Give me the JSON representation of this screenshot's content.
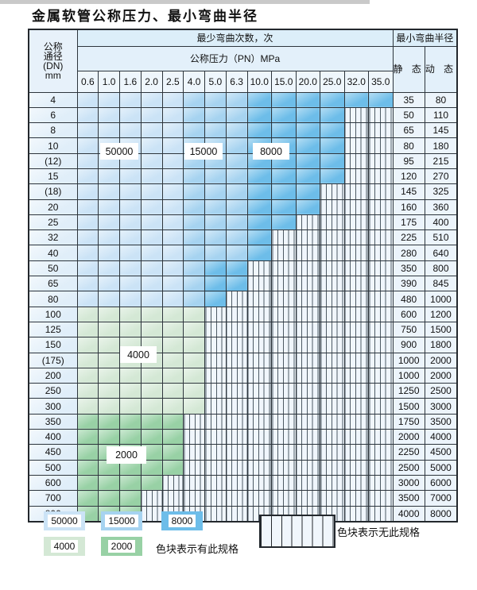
{
  "title": "金属软管公称压力、最小弯曲半径",
  "table": {
    "dn_header_lines": [
      "公称",
      "通径",
      "(DN)",
      "mm"
    ],
    "bend_cycles_header": "最少弯曲次数，次",
    "pressure_header": "公称压力（PN）MPa",
    "radius_header": "最小弯曲半径",
    "static_header": "静 态",
    "dynamic_header": "动 态",
    "pressure_columns": [
      "0.6",
      "1.0",
      "1.6",
      "2.0",
      "2.5",
      "4.0",
      "5.0",
      "6.3",
      "10.0",
      "15.0",
      "20.0",
      "25.0",
      "32.0",
      "35.0"
    ],
    "shade_meaning": {
      "L": "50000",
      "M": "15000",
      "D": "8000",
      "G4": "4000",
      "G2": "2000",
      "S": "无此规格"
    },
    "rows": [
      {
        "dn": "4",
        "static": "35",
        "dynamic": "80",
        "segments": [
          [
            "L",
            1,
            5
          ],
          [
            "M",
            6,
            8
          ],
          [
            "D",
            9,
            14
          ]
        ]
      },
      {
        "dn": "6",
        "static": "50",
        "dynamic": "110",
        "segments": [
          [
            "L",
            1,
            5
          ],
          [
            "M",
            6,
            8
          ],
          [
            "D",
            9,
            12
          ]
        ]
      },
      {
        "dn": "8",
        "static": "65",
        "dynamic": "145",
        "segments": [
          [
            "L",
            1,
            5
          ],
          [
            "M",
            6,
            8
          ],
          [
            "D",
            9,
            12
          ]
        ]
      },
      {
        "dn": "10",
        "static": "80",
        "dynamic": "180",
        "segments": [
          [
            "L",
            1,
            5
          ],
          [
            "M",
            6,
            8
          ],
          [
            "D",
            9,
            12
          ]
        ]
      },
      {
        "dn": "(12)",
        "static": "95",
        "dynamic": "215",
        "segments": [
          [
            "L",
            1,
            5
          ],
          [
            "M",
            6,
            8
          ],
          [
            "D",
            9,
            12
          ]
        ]
      },
      {
        "dn": "15",
        "static": "120",
        "dynamic": "270",
        "segments": [
          [
            "L",
            1,
            5
          ],
          [
            "M",
            6,
            8
          ],
          [
            "D",
            9,
            12
          ]
        ]
      },
      {
        "dn": "(18)",
        "static": "145",
        "dynamic": "325",
        "segments": [
          [
            "L",
            1,
            5
          ],
          [
            "M",
            6,
            8
          ],
          [
            "D",
            9,
            11
          ]
        ]
      },
      {
        "dn": "20",
        "static": "160",
        "dynamic": "360",
        "segments": [
          [
            "L",
            1,
            5
          ],
          [
            "M",
            6,
            8
          ],
          [
            "D",
            9,
            11
          ]
        ]
      },
      {
        "dn": "25",
        "static": "175",
        "dynamic": "400",
        "segments": [
          [
            "L",
            1,
            5
          ],
          [
            "M",
            6,
            8
          ],
          [
            "D",
            9,
            10
          ]
        ]
      },
      {
        "dn": "32",
        "static": "225",
        "dynamic": "510",
        "segments": [
          [
            "L",
            1,
            5
          ],
          [
            "M",
            6,
            8
          ],
          [
            "D",
            9,
            9
          ]
        ]
      },
      {
        "dn": "40",
        "static": "280",
        "dynamic": "640",
        "segments": [
          [
            "L",
            1,
            5
          ],
          [
            "M",
            6,
            8
          ],
          [
            "D",
            9,
            9
          ]
        ]
      },
      {
        "dn": "50",
        "static": "350",
        "dynamic": "800",
        "segments": [
          [
            "L",
            1,
            5
          ],
          [
            "M",
            6,
            6
          ],
          [
            "D",
            7,
            8
          ]
        ]
      },
      {
        "dn": "65",
        "static": "390",
        "dynamic": "845",
        "segments": [
          [
            "L",
            1,
            5
          ],
          [
            "M",
            6,
            6
          ],
          [
            "D",
            7,
            8
          ]
        ]
      },
      {
        "dn": "80",
        "static": "480",
        "dynamic": "1000",
        "segments": [
          [
            "L",
            1,
            5
          ],
          [
            "M",
            6,
            6
          ],
          [
            "D",
            7,
            7
          ]
        ]
      },
      {
        "dn": "100",
        "static": "600",
        "dynamic": "1200",
        "segments": [
          [
            "G4",
            1,
            6
          ]
        ]
      },
      {
        "dn": "125",
        "static": "750",
        "dynamic": "1500",
        "segments": [
          [
            "G4",
            1,
            6
          ]
        ]
      },
      {
        "dn": "150",
        "static": "900",
        "dynamic": "1800",
        "segments": [
          [
            "G4",
            1,
            6
          ]
        ]
      },
      {
        "dn": "(175)",
        "static": "1000",
        "dynamic": "2000",
        "segments": [
          [
            "G4",
            1,
            6
          ]
        ]
      },
      {
        "dn": "200",
        "static": "1000",
        "dynamic": "2000",
        "segments": [
          [
            "G4",
            1,
            6
          ]
        ]
      },
      {
        "dn": "250",
        "static": "1250",
        "dynamic": "2500",
        "segments": [
          [
            "G4",
            1,
            6
          ]
        ]
      },
      {
        "dn": "300",
        "static": "1500",
        "dynamic": "3000",
        "segments": [
          [
            "G4",
            1,
            6
          ]
        ]
      },
      {
        "dn": "350",
        "static": "1750",
        "dynamic": "3500",
        "segments": [
          [
            "G2",
            1,
            5
          ]
        ]
      },
      {
        "dn": "400",
        "static": "2000",
        "dynamic": "4000",
        "segments": [
          [
            "G2",
            1,
            5
          ]
        ]
      },
      {
        "dn": "450",
        "static": "2250",
        "dynamic": "4500",
        "segments": [
          [
            "G2",
            1,
            5
          ]
        ]
      },
      {
        "dn": "500",
        "static": "2500",
        "dynamic": "5000",
        "segments": [
          [
            "G2",
            1,
            5
          ]
        ]
      },
      {
        "dn": "600",
        "static": "3000",
        "dynamic": "6000",
        "segments": [
          [
            "G2",
            1,
            4
          ]
        ]
      },
      {
        "dn": "700",
        "static": "3500",
        "dynamic": "7000",
        "segments": [
          [
            "G2",
            1,
            3
          ]
        ]
      },
      {
        "dn": "800",
        "static": "4000",
        "dynamic": "8000",
        "segments": [
          [
            "G2",
            1,
            3
          ]
        ]
      }
    ]
  },
  "grid_labels": [
    {
      "text": "50000"
    },
    {
      "text": "15000"
    },
    {
      "text": "8000"
    },
    {
      "text": "4000"
    },
    {
      "text": "2000"
    }
  ],
  "legend": {
    "swatches": [
      {
        "label": "50000",
        "shade": "L"
      },
      {
        "label": "15000",
        "shade": "M"
      },
      {
        "label": "8000",
        "shade": "D"
      },
      {
        "label": "4000",
        "shade": "G4"
      },
      {
        "label": "2000",
        "shade": "G2"
      }
    ],
    "has_spec_text": "色块表示有此规格",
    "no_spec_text": "色块表示无此规格"
  },
  "colors": {
    "L": "#cbe3f6",
    "M": "#a6d3f0",
    "D": "#6dbde9",
    "G4": "#d4e8d5",
    "G2": "#98d1a5",
    "SBG": "#f0f6fc",
    "SLN": "#4d5a64"
  }
}
